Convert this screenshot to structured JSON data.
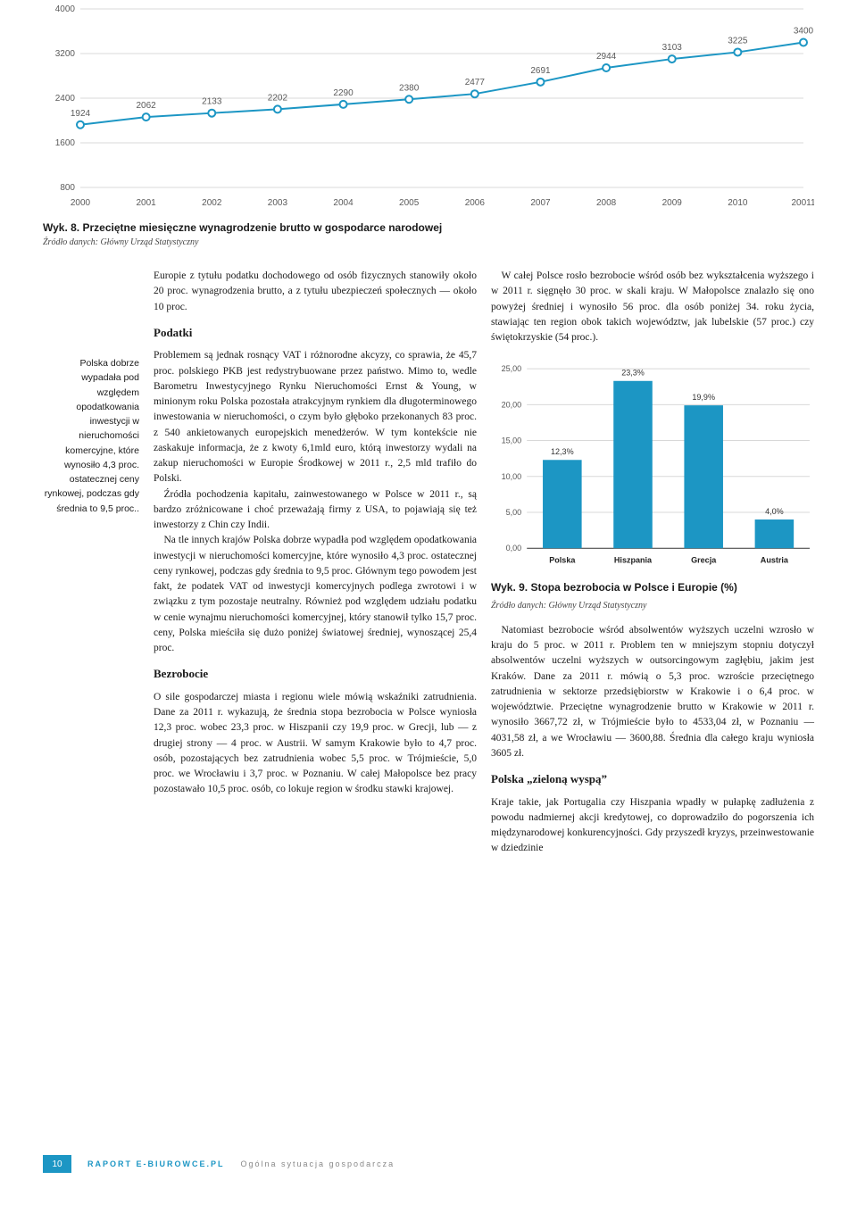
{
  "line_chart": {
    "type": "line",
    "years": [
      "2000",
      "2001",
      "2002",
      "2003",
      "2004",
      "2005",
      "2006",
      "2007",
      "2008",
      "2009",
      "2010",
      "20011"
    ],
    "values": [
      1924,
      2062,
      2133,
      2202,
      2290,
      2380,
      2477,
      2691,
      2944,
      3103,
      3225,
      3400
    ],
    "yticks": [
      800,
      1600,
      2400,
      3200,
      4000
    ],
    "ylim": [
      800,
      4000
    ],
    "line_color": "#1c96c4",
    "marker_fill": "#ffffff",
    "marker_stroke": "#1c96c4",
    "grid_color": "#d8d8d8",
    "axis_color": "#888888",
    "label_color": "#5a5a5a",
    "label_fontsize": 10
  },
  "caption1": "Wyk. 8. Przeciętne miesięczne wynagrodzenie brutto w gospodarce narodowej",
  "source1": "Źródło danych: Główny Urząd Statystyczny",
  "sidebar_text": "Polska dobrze wypadała pod względem opodatkowania inwestycji w nieruchomości komercyjne, które wynosiło 4,3 proc. ostatecznej ceny rynkowej, podczas gdy średnia to 9,5 proc..",
  "col1": {
    "p1": "Europie z tytułu podatku dochodowego od osób fizycznych stanowiły około 20 proc. wynagrodzenia brutto, a z tytułu ubezpieczeń społecznych — około 10 proc.",
    "h1": "Podatki",
    "p2": "Problemem są jednak rosnący VAT i różnorodne akcyzy, co sprawia, że 45,7 proc. polskiego PKB jest redystrybuowane przez państwo. Mimo to, wedle Barometru Inwestycyjnego Rynku Nieruchomości Ernst & Young, w minionym roku Polska pozostała atrakcyjnym rynkiem dla długoterminowego inwestowania w nieruchomości, o czym było głęboko przekonanych 83 proc. z 540 ankietowanych europejskich menedżerów. W tym kontekście nie zaskakuje informacja, że z kwoty 6,1mld euro, którą inwestorzy wydali na zakup nieruchomości w Europie Środkowej w 2011 r., 2,5 mld trafiło do Polski.",
    "p3": "Źródła pochodzenia kapitału, zainwestowanego w Polsce w 2011 r., są bardzo zróżnicowane i choć przeważają firmy z USA, to pojawiają się też inwestorzy z Chin czy Indii.",
    "p4": "Na tle innych krajów Polska dobrze wypadła pod względem opodatkowania inwestycji w nieruchomości komercyjne, które wynosiło 4,3 proc. ostatecznej ceny rynkowej, podczas gdy średnia to 9,5 proc. Głównym tego powodem jest fakt, że podatek VAT od inwestycji komercyjnych podlega zwrotowi i w związku z tym pozostaje neutralny. Również pod względem udziału podatku w cenie wynajmu nieruchomości komercyjnej, który stanowił tylko 15,7 proc. ceny, Polska mieściła się dużo poniżej światowej średniej, wynoszącej 25,4 proc.",
    "h2": "Bezrobocie",
    "p5": "O sile gospodarczej miasta i regionu wiele mówią wskaźniki zatrudnienia. Dane za 2011 r. wykazują, że średnia stopa bezrobocia w Polsce wyniosła 12,3 proc. wobec 23,3 proc. w Hiszpanii czy 19,9 proc. w Grecji, lub — z drugiej strony — 4 proc. w Austrii. W samym Krakowie było to 4,7 proc. osób, pozostających bez zatrudnienia wobec 5,5 proc. w Trójmieście, 5,0 proc. we Wrocławiu i 3,7 proc. w Poznaniu. W całej Małopolsce bez pracy pozostawało 10,5 proc. osób, co lokuje region w środku stawki krajowej."
  },
  "col2": {
    "p1": "W całej Polsce rosło bezrobocie wśród osób bez wykształcenia wyższego i w 2011 r. sięgnęło 30 proc. w skali kraju. W Małopolsce znalazło się ono powyżej średniej i wynosiło 56 proc. dla osób poniżej 34. roku życia, stawiając ten region obok takich województw, jak lubelskie (57 proc.) czy świętokrzyskie (54 proc.).",
    "caption2": "Wyk. 9. Stopa bezrobocia w Polsce i Europie (%)",
    "source2": "Źródło danych: Główny Urząd Statystyczny",
    "p2": "Natomiast bezrobocie wśród absolwentów wyższych uczelni wzrosło w kraju do 5 proc. w 2011 r. Problem ten w mniejszym stopniu dotyczył absolwentów uczelni wyższych w outsorcingowym zagłębiu, jakim jest Kraków. Dane za 2011 r. mówią o 5,3 proc. wzroście przeciętnego zatrudnienia w sektorze przedsiębiorstw w Krakowie i o 6,4 proc. w województwie. Przeciętne wynagrodzenie brutto w Krakowie w 2011 r. wynosiło 3667,72 zł, w Trójmieście było to 4533,04 zł, w Poznaniu — 4031,58 zł, a we Wrocławiu — 3600,88. Średnia dla całego kraju wyniosła 3605 zł.",
    "h3": "Polska „zieloną wyspą”",
    "p3": "Kraje takie, jak Portugalia czy Hiszpania wpadły w pułapkę zadłużenia z powodu nadmiernej akcji kredytowej, co doprowadziło do pogorszenia ich międzynarodowej konkurencyjności. Gdy przyszedł kryzys, przeinwestowanie w dziedzinie"
  },
  "bar_chart": {
    "type": "bar",
    "categories": [
      "Polska",
      "Hiszpania",
      "Grecja",
      "Austria"
    ],
    "values": [
      12.3,
      23.3,
      19.9,
      4.0
    ],
    "value_labels": [
      "12,3%",
      "23,3%",
      "19,9%",
      "4,0%"
    ],
    "bar_color": "#1c96c4",
    "yticks": [
      0,
      5,
      10,
      15,
      20,
      25
    ],
    "ytick_labels": [
      "0,00",
      "5,00",
      "10,00",
      "15,00",
      "20,00",
      "25,00"
    ],
    "ylim": [
      0,
      25
    ],
    "grid_color": "#d8d8d8",
    "axis_color": "#333333",
    "label_fontsize": 9,
    "bar_width": 0.55
  },
  "footer": {
    "page": "10",
    "title": "RAPORT E-BIUROWCE.PL",
    "sub": "Ogólna sytuacja gospodarcza"
  }
}
